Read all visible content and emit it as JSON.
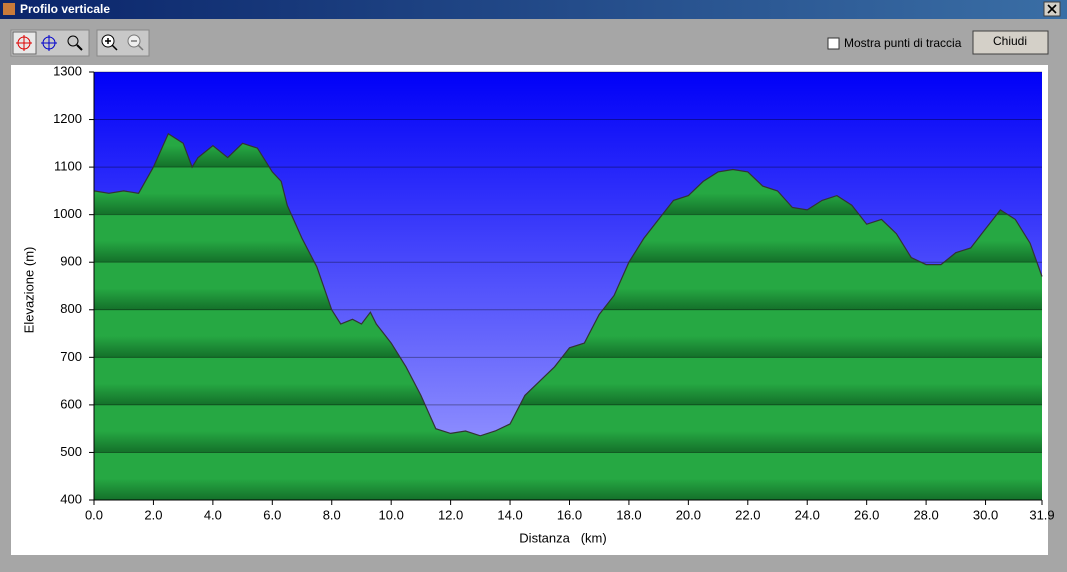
{
  "window": {
    "title": "Profilo verticale",
    "checkbox_label": "Mostra punti di traccia",
    "button": "Chiudi"
  },
  "chart_data": {
    "type": "area",
    "x_label": "Distanza   (km)",
    "y_label": "Elevazione (m)",
    "x": [
      0,
      0.5,
      1.0,
      1.5,
      2.0,
      2.5,
      3.0,
      3.3,
      3.5,
      4.0,
      4.5,
      5.0,
      5.5,
      6.0,
      6.3,
      6.5,
      7.0,
      7.5,
      8.0,
      8.3,
      8.7,
      9.0,
      9.3,
      9.5,
      10.0,
      10.5,
      11.0,
      11.5,
      12.0,
      12.5,
      13.0,
      13.5,
      14.0,
      14.5,
      15.0,
      15.5,
      16.0,
      16.5,
      17.0,
      17.5,
      18.0,
      18.5,
      19.0,
      19.5,
      20.0,
      20.5,
      21.0,
      21.5,
      22.0,
      22.5,
      23.0,
      23.5,
      24.0,
      24.5,
      25.0,
      25.5,
      26.0,
      26.5,
      27.0,
      27.5,
      28.0,
      28.5,
      29.0,
      29.5,
      30.0,
      30.5,
      31.0,
      31.5,
      31.9
    ],
    "values": [
      1050,
      1045,
      1050,
      1045,
      1100,
      1170,
      1150,
      1100,
      1120,
      1145,
      1120,
      1150,
      1140,
      1090,
      1070,
      1020,
      950,
      890,
      800,
      770,
      780,
      770,
      795,
      770,
      730,
      680,
      620,
      550,
      540,
      545,
      535,
      545,
      560,
      620,
      650,
      680,
      720,
      730,
      790,
      830,
      900,
      950,
      990,
      1030,
      1040,
      1070,
      1090,
      1095,
      1090,
      1060,
      1050,
      1015,
      1010,
      1030,
      1040,
      1020,
      980,
      990,
      960,
      910,
      895,
      895,
      920,
      930,
      970,
      1010,
      990,
      940,
      870
    ],
    "color": "#26a843",
    "line_color": "#333333",
    "background_top": "#0000f8",
    "background_bottom": "#a4a4ff",
    "xlim": [
      0,
      31.9
    ],
    "xticks": [
      {
        "value": 0,
        "label": "0.0"
      },
      {
        "value": 2,
        "label": "2.0"
      },
      {
        "value": 4,
        "label": "4.0"
      },
      {
        "value": 6,
        "label": "6.0"
      },
      {
        "value": 8,
        "label": "8.0"
      },
      {
        "value": 10,
        "label": "10.0"
      },
      {
        "value": 12,
        "label": "12.0"
      },
      {
        "value": 14,
        "label": "14.0"
      },
      {
        "value": 16,
        "label": "16.0"
      },
      {
        "value": 18,
        "label": "18.0"
      },
      {
        "value": 20,
        "label": "20.0"
      },
      {
        "value": 22,
        "label": "22.0"
      },
      {
        "value": 24,
        "label": "24.0"
      },
      {
        "value": 26,
        "label": "26.0"
      },
      {
        "value": 28,
        "label": "28.0"
      },
      {
        "value": 30,
        "label": "30.0"
      },
      31.9
    ],
    "ylim": [
      400,
      1300
    ],
    "yticks": [
      400,
      500,
      600,
      700,
      800,
      900,
      1000,
      1100,
      1200,
      1300
    ],
    "grid": true
  }
}
